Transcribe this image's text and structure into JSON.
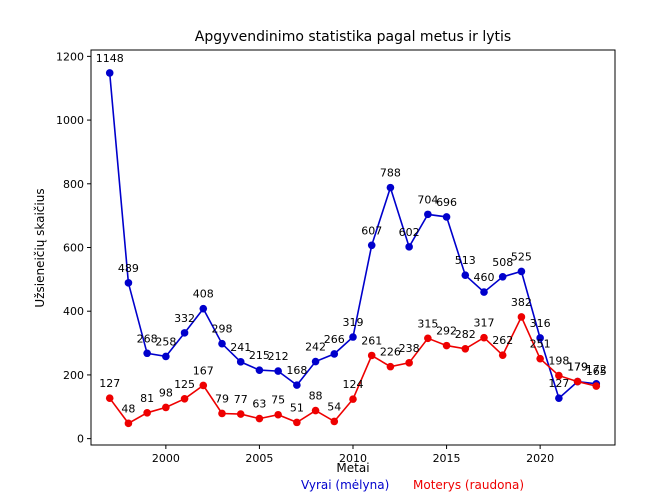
{
  "chart_data": {
    "type": "line",
    "title": "Apgyvendinimo statistika pagal metus ir lytis",
    "xlabel": "Metai",
    "ylabel": "Užsieneičių skaičius",
    "xlim": [
      1996,
      2024
    ],
    "ylim": [
      -20,
      1220
    ],
    "x_ticks": [
      2000,
      2005,
      2010,
      2015,
      2020
    ],
    "y_ticks": [
      0,
      200,
      400,
      600,
      800,
      1000,
      1200
    ],
    "grid": false,
    "x": [
      1997,
      1998,
      1999,
      2000,
      2001,
      2002,
      2003,
      2004,
      2005,
      2006,
      2007,
      2008,
      2009,
      2010,
      2011,
      2012,
      2013,
      2014,
      2015,
      2016,
      2017,
      2018,
      2019,
      2020,
      2021,
      2022,
      2023
    ],
    "series": [
      {
        "color": "#0000cc",
        "values": [
          1148,
          489,
          268,
          258,
          332,
          408,
          298,
          241,
          215,
          212,
          168,
          242,
          266,
          319,
          607,
          788,
          602,
          704,
          696,
          513,
          460,
          508,
          525,
          316,
          127,
          179,
          172
        ]
      },
      {
        "color": "#ee0000",
        "values": [
          127,
          48,
          81,
          98,
          125,
          167,
          79,
          77,
          63,
          75,
          51,
          88,
          54,
          124,
          261,
          226,
          238,
          315,
          292,
          282,
          317,
          262,
          382,
          251,
          198,
          179,
          165
        ]
      }
    ],
    "legend_blue": "Vyrai (mėlyna)",
    "legend_red": "Moterys (raudona)"
  }
}
